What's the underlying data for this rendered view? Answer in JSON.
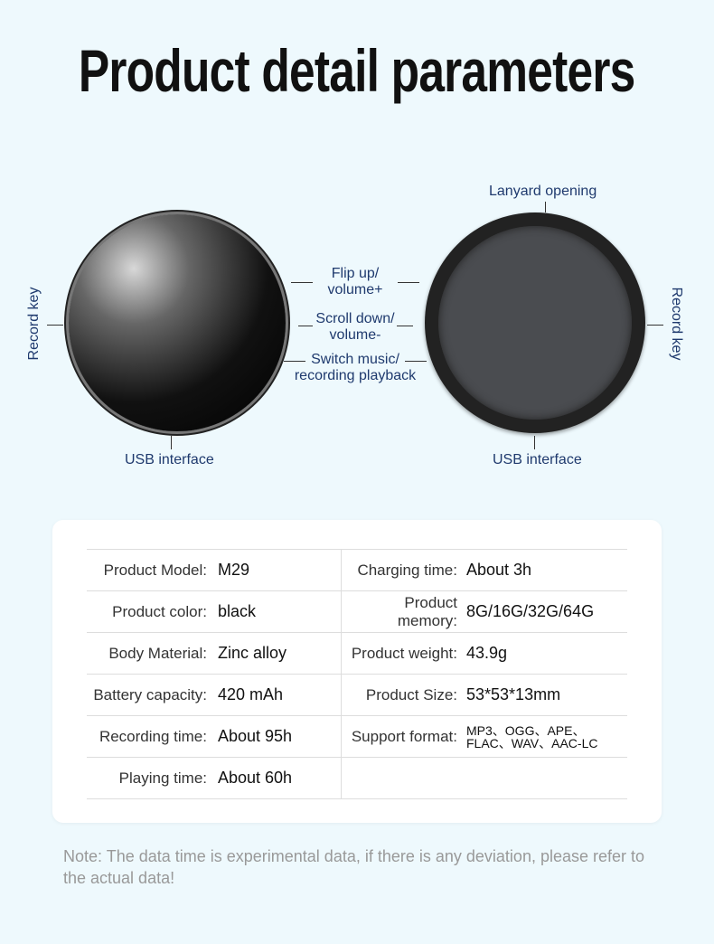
{
  "title": "Product detail parameters",
  "diagram": {
    "labels": {
      "lanyard": "Lanyard opening",
      "flip_up": "Flip up/\nvolume+",
      "scroll_down": "Scroll down/\nvolume-",
      "switch_music": "Switch music/\nrecording playback",
      "record_key_left": "Record key",
      "record_key_right": "Record key",
      "usb_left": "USB interface",
      "usb_right": "USB interface"
    }
  },
  "specs": [
    {
      "left_label": "Product Model:",
      "left_value": "M29",
      "right_label": "Charging time:",
      "right_value": "About 3h"
    },
    {
      "left_label": "Product color:",
      "left_value": "black",
      "right_label": "Product memory:",
      "right_value": "8G/16G/32G/64G"
    },
    {
      "left_label": "Body Material:",
      "left_value": "Zinc alloy",
      "right_label": "Product weight:",
      "right_value": "43.9g"
    },
    {
      "left_label": "Battery capacity:",
      "left_value": "420 mAh",
      "right_label": "Product Size:",
      "right_value": "53*53*13mm"
    },
    {
      "left_label": "Recording time:",
      "left_value": "About 95h",
      "right_label": "Support format:",
      "right_value": "MP3、OGG、APE、FLAC、WAV、AAC-LC"
    },
    {
      "left_label": "Playing time:",
      "left_value": "About 60h",
      "right_label": "",
      "right_value": ""
    }
  ],
  "note": "Note: The data time is experimental data, if there is any deviation, please refer to the actual data!"
}
